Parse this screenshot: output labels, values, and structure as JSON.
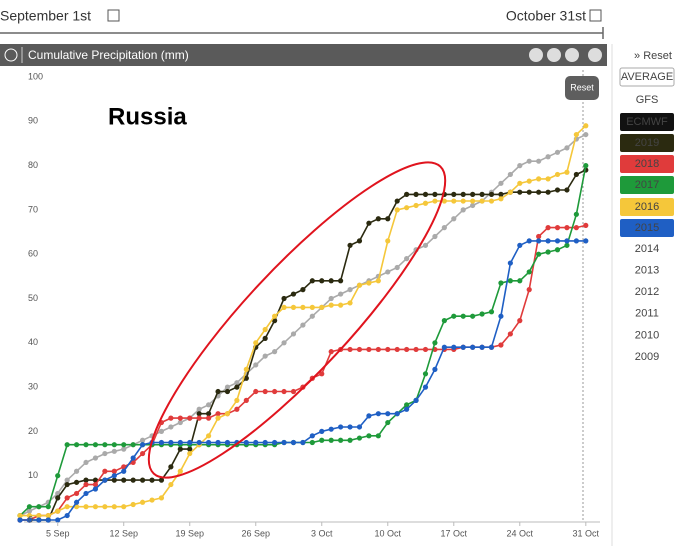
{
  "header": {
    "start_date": "September 1st",
    "end_date": "October 31st"
  },
  "chart_data": {
    "type": "line",
    "title": "Cumulative Precipitation (mm)",
    "annotation": "Russia",
    "reset_button": "Reset",
    "categories": [
      null,
      null,
      null,
      null,
      "5 Sep",
      null,
      null,
      null,
      null,
      null,
      null,
      "12 Sep",
      null,
      null,
      null,
      null,
      null,
      null,
      "19 Sep",
      null,
      null,
      null,
      null,
      null,
      null,
      "26 Sep",
      null,
      null,
      null,
      null,
      null,
      null,
      "3 Oct",
      null,
      null,
      null,
      null,
      null,
      null,
      "10 Oct",
      null,
      null,
      null,
      null,
      null,
      null,
      "17 Oct",
      null,
      null,
      null,
      null,
      null,
      null,
      "24 Oct",
      null,
      null,
      null,
      null,
      null,
      null,
      "31 Oct"
    ],
    "ylim": [
      0,
      100
    ],
    "yticks": [
      0,
      10,
      20,
      30,
      40,
      50,
      60,
      70,
      80,
      90,
      100
    ],
    "series": [
      {
        "name": "AVERAGE",
        "color": "#aaaaaa",
        "values": [
          1,
          2,
          3,
          4,
          6,
          9,
          11,
          13,
          14,
          15,
          15.5,
          16,
          17,
          18,
          19,
          20,
          21,
          22,
          23,
          25,
          26,
          28,
          30,
          31,
          33,
          35,
          37,
          38,
          40,
          42,
          44,
          46,
          48,
          50,
          51,
          52,
          53,
          54,
          55,
          56,
          57,
          59,
          61,
          62,
          64,
          66,
          68,
          70,
          71,
          72,
          74,
          76,
          78,
          80,
          81,
          81,
          82,
          83,
          84,
          86,
          87
        ]
      },
      {
        "name": "2019",
        "color": "#2b2a10",
        "values": [
          0,
          0,
          0,
          0,
          5,
          8,
          8.5,
          9,
          9,
          9,
          9,
          9,
          9,
          9,
          9,
          9,
          12,
          16,
          16,
          24,
          24,
          29,
          29,
          30,
          32,
          39,
          41,
          45,
          50,
          51,
          52,
          54,
          54,
          54,
          54,
          62,
          63,
          67,
          68,
          68,
          72,
          73.5,
          73.5,
          73.5,
          73.5,
          73.5,
          73.5,
          73.5,
          73.5,
          73.5,
          73.5,
          73.5,
          74,
          74,
          74,
          74,
          74,
          74.5,
          74.5,
          78,
          79
        ]
      },
      {
        "name": "2018",
        "color": "#e03b3b",
        "values": [
          0,
          0,
          1,
          1,
          2,
          5,
          6,
          8,
          8,
          11,
          11,
          12,
          13,
          15,
          17,
          22,
          23,
          23,
          23,
          23,
          23,
          24,
          24,
          25,
          27,
          29,
          29,
          29,
          29,
          29,
          30,
          32,
          33,
          38,
          38.5,
          38.5,
          38.5,
          38.5,
          38.5,
          38.5,
          38.5,
          38.5,
          38.5,
          38.5,
          38.5,
          38.5,
          38.5,
          39,
          39,
          39,
          39,
          39.5,
          42,
          45,
          52,
          64,
          66,
          66,
          66,
          66,
          66.5
        ]
      },
      {
        "name": "2017",
        "color": "#1e9a3a",
        "values": [
          1,
          3,
          3,
          3,
          10,
          17,
          17,
          17,
          17,
          17,
          17,
          17,
          17,
          17,
          17,
          17,
          17,
          17,
          17,
          17,
          17,
          17,
          17,
          17,
          17,
          17,
          17,
          17,
          17.5,
          17.5,
          17.5,
          17.5,
          18,
          18,
          18,
          18,
          18.5,
          19,
          19,
          22,
          24,
          26,
          27,
          33,
          40,
          45,
          46,
          46,
          46,
          46.5,
          47,
          53.5,
          54,
          54,
          56,
          60,
          60.5,
          61,
          62,
          69,
          80
        ]
      },
      {
        "name": "2016",
        "color": "#f5c73a",
        "values": [
          1,
          1,
          1,
          1,
          2,
          3,
          3,
          3,
          3,
          3,
          3,
          3,
          3.5,
          4,
          4.5,
          5,
          8,
          11,
          15,
          17,
          19,
          23,
          24,
          27,
          34,
          40,
          43,
          46,
          48,
          48,
          48,
          48,
          48,
          48.5,
          48.5,
          49,
          53,
          53.5,
          54,
          63,
          70,
          70.5,
          71,
          71.5,
          72,
          72,
          72,
          72,
          72,
          72,
          72,
          72.5,
          74,
          76,
          76.5,
          77,
          77,
          78,
          78.5,
          87,
          89
        ]
      },
      {
        "name": "2015",
        "color": "#1f5fc4",
        "values": [
          0,
          0,
          0,
          0,
          0,
          1,
          4,
          6,
          7,
          9,
          10,
          11,
          14,
          17,
          17.5,
          17.5,
          17.5,
          17.5,
          17.5,
          17.5,
          17.5,
          17.5,
          17.5,
          17.5,
          17.5,
          17.5,
          17.5,
          17.5,
          17.5,
          17.5,
          17.5,
          19,
          20,
          20.5,
          21,
          21,
          21,
          23.5,
          24,
          24,
          24,
          25,
          27,
          30,
          34,
          39,
          39,
          39,
          39,
          39,
          39,
          46,
          58,
          62,
          63,
          63,
          63,
          63,
          63,
          63,
          63
        ]
      }
    ]
  },
  "sidebar": {
    "reset": "» Reset",
    "models": [
      "GFS",
      "ECMWF"
    ],
    "years": [
      "2014",
      "2013",
      "2012",
      "2011",
      "2010",
      "2009"
    ]
  }
}
